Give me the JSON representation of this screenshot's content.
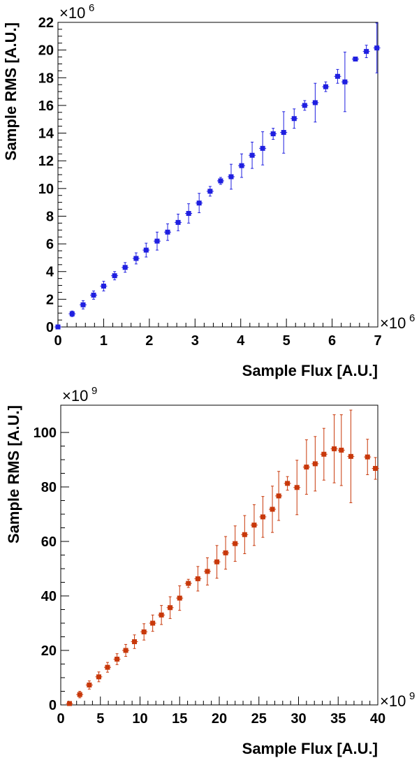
{
  "chart_data": [
    {
      "type": "scatter",
      "title": "",
      "xlabel": "Sample Flux [A.U.]",
      "ylabel": "Sample RMS [A.U.]",
      "x_multiplier": "×10",
      "x_multiplier_exp": "6",
      "y_multiplier": "×10",
      "y_multiplier_exp": "6",
      "xlim": [
        0,
        7
      ],
      "ylim": [
        0,
        22
      ],
      "x_ticks": [
        0,
        1,
        2,
        3,
        4,
        5,
        6,
        7
      ],
      "y_ticks": [
        0,
        2,
        4,
        6,
        8,
        10,
        12,
        14,
        16,
        18,
        20,
        22
      ],
      "color": "#1f1fe0",
      "grid": false,
      "points": [
        {
          "x": 0.0,
          "y": 0.0,
          "err": 0.05
        },
        {
          "x": 0.31,
          "y": 0.95,
          "err": 0.2
        },
        {
          "x": 0.55,
          "y": 1.6,
          "err": 0.3
        },
        {
          "x": 0.78,
          "y": 2.3,
          "err": 0.3
        },
        {
          "x": 1.0,
          "y": 2.95,
          "err": 0.35
        },
        {
          "x": 1.24,
          "y": 3.7,
          "err": 0.3
        },
        {
          "x": 1.47,
          "y": 4.3,
          "err": 0.35
        },
        {
          "x": 1.71,
          "y": 4.95,
          "err": 0.4
        },
        {
          "x": 1.93,
          "y": 5.55,
          "err": 0.5
        },
        {
          "x": 2.17,
          "y": 6.2,
          "err": 0.65
        },
        {
          "x": 2.4,
          "y": 6.85,
          "err": 0.6
        },
        {
          "x": 2.63,
          "y": 7.55,
          "err": 0.6
        },
        {
          "x": 2.86,
          "y": 8.2,
          "err": 0.7
        },
        {
          "x": 3.09,
          "y": 8.95,
          "err": 0.7
        },
        {
          "x": 3.33,
          "y": 9.8,
          "err": 0.35
        },
        {
          "x": 3.56,
          "y": 10.55,
          "err": 0.25
        },
        {
          "x": 3.79,
          "y": 10.85,
          "err": 0.9
        },
        {
          "x": 4.02,
          "y": 11.65,
          "err": 0.85
        },
        {
          "x": 4.25,
          "y": 12.4,
          "err": 0.95
        },
        {
          "x": 4.48,
          "y": 12.9,
          "err": 1.2
        },
        {
          "x": 4.71,
          "y": 13.95,
          "err": 0.4
        },
        {
          "x": 4.94,
          "y": 14.05,
          "err": 1.5
        },
        {
          "x": 5.17,
          "y": 15.05,
          "err": 0.7
        },
        {
          "x": 5.4,
          "y": 16.0,
          "err": 0.35
        },
        {
          "x": 5.63,
          "y": 16.2,
          "err": 1.4
        },
        {
          "x": 5.86,
          "y": 17.35,
          "err": 0.35
        },
        {
          "x": 6.12,
          "y": 18.1,
          "err": 0.5
        },
        {
          "x": 6.28,
          "y": 17.7,
          "err": 2.15
        },
        {
          "x": 6.51,
          "y": 19.35,
          "err": 0.0
        },
        {
          "x": 6.75,
          "y": 19.9,
          "err": 0.45
        },
        {
          "x": 6.98,
          "y": 20.15,
          "err": 1.8
        }
      ]
    },
    {
      "type": "scatter",
      "title": "",
      "xlabel": "Sample Flux [A.U.]",
      "ylabel": "Sample RMS [A.U.]",
      "x_multiplier": "×10",
      "x_multiplier_exp": "9",
      "y_multiplier": "×10",
      "y_multiplier_exp": "9",
      "xlim": [
        0,
        40
      ],
      "ylim": [
        0,
        110
      ],
      "x_ticks": [
        0,
        5,
        10,
        15,
        20,
        25,
        30,
        35,
        40
      ],
      "y_ticks": [
        0,
        20,
        40,
        60,
        80,
        100
      ],
      "color": "#c8380a",
      "grid": false,
      "points": [
        {
          "x": 1.1,
          "y": 0.5,
          "err": 0.3
        },
        {
          "x": 2.4,
          "y": 3.8,
          "err": 1.2
        },
        {
          "x": 3.6,
          "y": 7.3,
          "err": 1.5
        },
        {
          "x": 4.8,
          "y": 10.3,
          "err": 1.8
        },
        {
          "x": 5.9,
          "y": 13.8,
          "err": 1.8
        },
        {
          "x": 7.1,
          "y": 16.8,
          "err": 2.0
        },
        {
          "x": 8.2,
          "y": 20.0,
          "err": 2.2
        },
        {
          "x": 9.3,
          "y": 23.2,
          "err": 2.5
        },
        {
          "x": 10.5,
          "y": 26.8,
          "err": 3.0
        },
        {
          "x": 11.6,
          "y": 30.0,
          "err": 3.0
        },
        {
          "x": 12.7,
          "y": 33.0,
          "err": 3.5
        },
        {
          "x": 13.8,
          "y": 35.7,
          "err": 4.0
        },
        {
          "x": 15.0,
          "y": 39.2,
          "err": 4.5
        },
        {
          "x": 16.1,
          "y": 44.6,
          "err": 1.5
        },
        {
          "x": 17.3,
          "y": 46.3,
          "err": 4.5
        },
        {
          "x": 18.5,
          "y": 49.0,
          "err": 5.0
        },
        {
          "x": 19.7,
          "y": 52.5,
          "err": 6.0
        },
        {
          "x": 20.8,
          "y": 55.8,
          "err": 6.0
        },
        {
          "x": 22.0,
          "y": 59.2,
          "err": 6.5
        },
        {
          "x": 23.2,
          "y": 62.5,
          "err": 7.0
        },
        {
          "x": 24.4,
          "y": 66.0,
          "err": 7.5
        },
        {
          "x": 25.5,
          "y": 69.0,
          "err": 7.5
        },
        {
          "x": 26.7,
          "y": 71.8,
          "err": 8.5
        },
        {
          "x": 27.5,
          "y": 76.7,
          "err": 9.0
        },
        {
          "x": 28.6,
          "y": 81.3,
          "err": 2.5
        },
        {
          "x": 29.8,
          "y": 79.8,
          "err": 10.0
        },
        {
          "x": 31.0,
          "y": 87.3,
          "err": 10.0
        },
        {
          "x": 32.1,
          "y": 88.5,
          "err": 10.0
        },
        {
          "x": 33.2,
          "y": 92.0,
          "err": 9.5
        },
        {
          "x": 34.5,
          "y": 94.0,
          "err": 12.5
        },
        {
          "x": 35.4,
          "y": 93.5,
          "err": 13.0
        },
        {
          "x": 36.6,
          "y": 91.2,
          "err": 17.0
        },
        {
          "x": 38.7,
          "y": 91.0,
          "err": 6.5
        },
        {
          "x": 39.7,
          "y": 86.8,
          "err": 4.0
        }
      ]
    }
  ]
}
